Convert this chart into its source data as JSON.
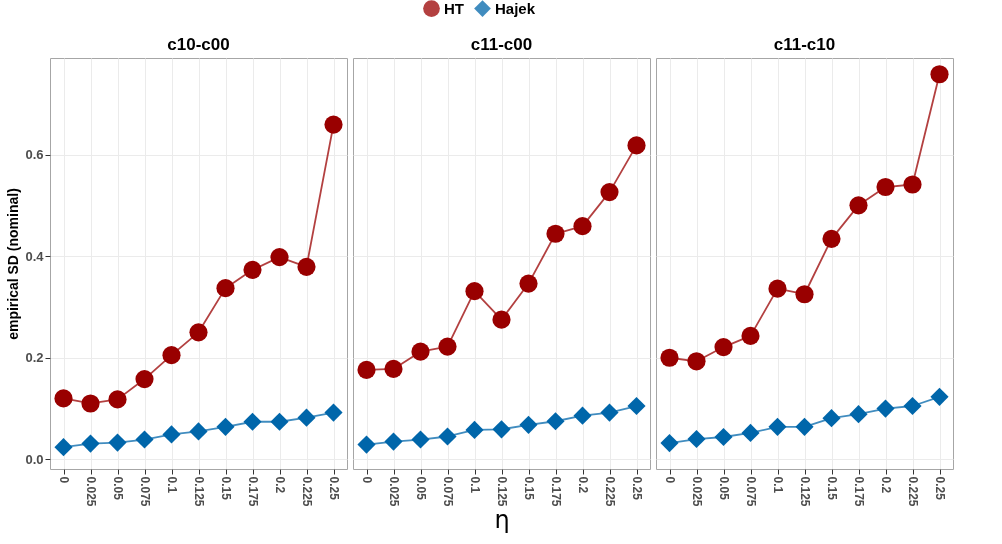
{
  "chart_data": [
    {
      "type": "line",
      "title": "c10-c00",
      "ylabel": "empirical SD (nominal)",
      "categories": [
        "0",
        "0.025",
        "0.05",
        "0.075",
        "0.1",
        "0.125",
        "0.15",
        "0.175",
        "0.2",
        "0.225",
        "0.25"
      ],
      "ylim": [
        -0.019,
        0.79
      ],
      "yticks": [
        {
          "value": 0,
          "label": "0.0"
        },
        {
          "value": 0.2,
          "label": "0.2"
        },
        {
          "value": 0.4,
          "label": "0.4"
        },
        {
          "value": 0.6,
          "label": "0.6"
        }
      ],
      "grid": true,
      "legend": "top",
      "tick_labels": true,
      "series": [
        {
          "name": "HT",
          "color": "#990000",
          "marker": "circle",
          "values": [
            0.12,
            0.11,
            0.118,
            0.158,
            0.205,
            0.25,
            0.337,
            0.373,
            0.398,
            0.379,
            0.659
          ]
        },
        {
          "name": "Hajek",
          "color": "#0066aa",
          "marker": "diamond",
          "values": [
            0.024,
            0.031,
            0.033,
            0.039,
            0.049,
            0.055,
            0.064,
            0.074,
            0.074,
            0.082,
            0.092
          ]
        }
      ]
    },
    {
      "type": "line",
      "title": "c11-c00",
      "xlabel": "η",
      "categories": [
        "0",
        "0.025",
        "0.05",
        "0.075",
        "0.1",
        "0.125",
        "0.15",
        "0.175",
        "0.2",
        "0.225",
        "0.25"
      ],
      "ylim": [
        -0.019,
        0.79
      ],
      "yticks": [
        {
          "value": 0,
          "label": "0.0"
        },
        {
          "value": 0.2,
          "label": "0.2"
        },
        {
          "value": 0.4,
          "label": "0.4"
        },
        {
          "value": 0.6,
          "label": "0.6"
        }
      ],
      "grid": true,
      "legend": "top",
      "tick_labels": "x",
      "series": [
        {
          "name": "HT",
          "color": "#990000",
          "marker": "circle",
          "values": [
            0.176,
            0.178,
            0.212,
            0.222,
            0.331,
            0.275,
            0.346,
            0.444,
            0.459,
            0.526,
            0.618
          ]
        },
        {
          "name": "Hajek",
          "color": "#0066aa",
          "marker": "diamond",
          "values": [
            0.029,
            0.035,
            0.039,
            0.045,
            0.058,
            0.059,
            0.068,
            0.075,
            0.086,
            0.092,
            0.105
          ]
        }
      ]
    },
    {
      "type": "line",
      "title": "c11-c10",
      "categories": [
        "0",
        "0.025",
        "0.05",
        "0.075",
        "0.1",
        "0.125",
        "0.15",
        "0.175",
        "0.2",
        "0.225",
        "0.25"
      ],
      "ylim": [
        -0.019,
        0.79
      ],
      "yticks": [
        {
          "value": 0,
          "label": "0.0"
        },
        {
          "value": 0.2,
          "label": "0.2"
        },
        {
          "value": 0.4,
          "label": "0.4"
        },
        {
          "value": 0.6,
          "label": "0.6"
        }
      ],
      "grid": true,
      "legend": "top",
      "tick_labels": "x",
      "series": [
        {
          "name": "HT",
          "color": "#990000",
          "marker": "circle",
          "values": [
            0.2,
            0.193,
            0.221,
            0.243,
            0.336,
            0.325,
            0.434,
            0.5,
            0.536,
            0.541,
            0.758
          ]
        },
        {
          "name": "Hajek",
          "color": "#0066aa",
          "marker": "diamond",
          "values": [
            0.032,
            0.04,
            0.044,
            0.052,
            0.064,
            0.064,
            0.081,
            0.089,
            0.1,
            0.105,
            0.123
          ]
        }
      ]
    }
  ]
}
